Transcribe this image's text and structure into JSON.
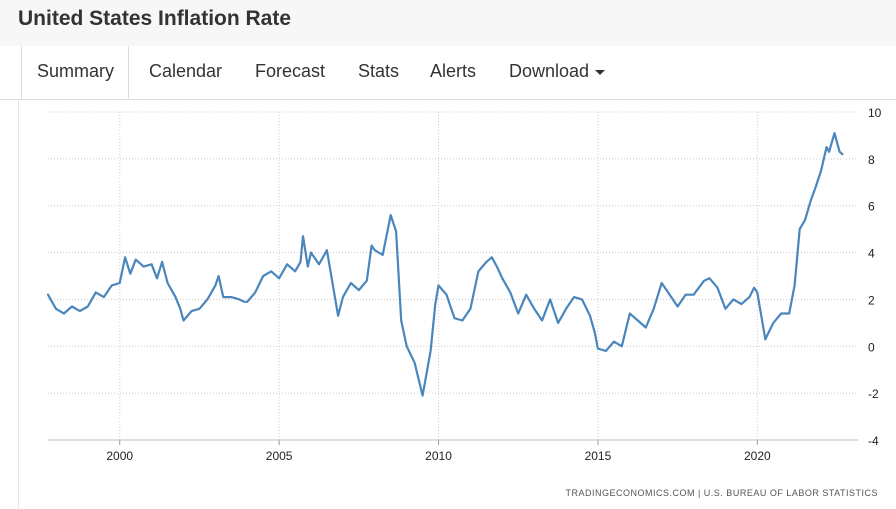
{
  "header": {
    "title": "United States Inflation Rate"
  },
  "tabs": {
    "summary": "Summary",
    "calendar": "Calendar",
    "forecast": "Forecast",
    "stats": "Stats",
    "alerts": "Alerts",
    "download": "Download"
  },
  "source": "TRADINGECONOMICS.COM | U.S. BUREAU OF LABOR STATISTICS",
  "colors": {
    "line": "#4a86bc",
    "grid": "#cccccc",
    "accent_text": "#333333"
  },
  "chart_data": {
    "type": "line",
    "title": "",
    "xlabel": "",
    "ylabel": "",
    "xlim": [
      1997.75,
      2022.75
    ],
    "ylim": [
      -4,
      10
    ],
    "x_ticks": [
      "2000",
      "2005",
      "2010",
      "2015",
      "2020"
    ],
    "y_ticks": [
      "10",
      "8",
      "6",
      "4",
      "2",
      "0",
      "-2",
      "-4"
    ],
    "grid": true,
    "series": [
      {
        "points": [
          [
            1997.75,
            2.2
          ],
          [
            1998.0,
            1.6
          ],
          [
            1998.25,
            1.4
          ],
          [
            1998.5,
            1.7
          ],
          [
            1998.75,
            1.5
          ],
          [
            1999.0,
            1.7
          ],
          [
            1999.25,
            2.3
          ],
          [
            1999.5,
            2.1
          ],
          [
            1999.75,
            2.6
          ],
          [
            2000.0,
            2.7
          ],
          [
            2000.17,
            3.8
          ],
          [
            2000.33,
            3.1
          ],
          [
            2000.5,
            3.7
          ],
          [
            2000.75,
            3.4
          ],
          [
            2001.0,
            3.5
          ],
          [
            2001.17,
            2.9
          ],
          [
            2001.33,
            3.6
          ],
          [
            2001.5,
            2.7
          ],
          [
            2001.75,
            2.1
          ],
          [
            2001.9,
            1.6
          ],
          [
            2002.0,
            1.1
          ],
          [
            2002.25,
            1.5
          ],
          [
            2002.5,
            1.6
          ],
          [
            2002.75,
            2.0
          ],
          [
            2003.0,
            2.6
          ],
          [
            2003.1,
            3.0
          ],
          [
            2003.25,
            2.1
          ],
          [
            2003.5,
            2.1
          ],
          [
            2003.75,
            2.0
          ],
          [
            2003.9,
            1.9
          ],
          [
            2004.0,
            1.9
          ],
          [
            2004.25,
            2.3
          ],
          [
            2004.5,
            3.0
          ],
          [
            2004.75,
            3.2
          ],
          [
            2005.0,
            2.9
          ],
          [
            2005.25,
            3.5
          ],
          [
            2005.5,
            3.2
          ],
          [
            2005.67,
            3.6
          ],
          [
            2005.75,
            4.7
          ],
          [
            2005.9,
            3.4
          ],
          [
            2006.0,
            4.0
          ],
          [
            2006.25,
            3.5
          ],
          [
            2006.5,
            4.1
          ],
          [
            2006.75,
            2.1
          ],
          [
            2006.85,
            1.3
          ],
          [
            2007.0,
            2.1
          ],
          [
            2007.25,
            2.7
          ],
          [
            2007.5,
            2.4
          ],
          [
            2007.75,
            2.8
          ],
          [
            2007.9,
            4.3
          ],
          [
            2008.0,
            4.1
          ],
          [
            2008.25,
            3.9
          ],
          [
            2008.5,
            5.6
          ],
          [
            2008.67,
            4.9
          ],
          [
            2008.83,
            1.1
          ],
          [
            2009.0,
            0.0
          ],
          [
            2009.25,
            -0.7
          ],
          [
            2009.5,
            -2.1
          ],
          [
            2009.75,
            -0.2
          ],
          [
            2009.9,
            1.8
          ],
          [
            2010.0,
            2.6
          ],
          [
            2010.25,
            2.2
          ],
          [
            2010.5,
            1.2
          ],
          [
            2010.75,
            1.1
          ],
          [
            2011.0,
            1.6
          ],
          [
            2011.25,
            3.2
          ],
          [
            2011.5,
            3.6
          ],
          [
            2011.67,
            3.8
          ],
          [
            2011.83,
            3.4
          ],
          [
            2012.0,
            2.9
          ],
          [
            2012.25,
            2.3
          ],
          [
            2012.5,
            1.4
          ],
          [
            2012.75,
            2.2
          ],
          [
            2013.0,
            1.6
          ],
          [
            2013.25,
            1.1
          ],
          [
            2013.5,
            2.0
          ],
          [
            2013.75,
            1.0
          ],
          [
            2014.0,
            1.6
          ],
          [
            2014.25,
            2.1
          ],
          [
            2014.5,
            2.0
          ],
          [
            2014.75,
            1.3
          ],
          [
            2014.9,
            0.6
          ],
          [
            2015.0,
            -0.1
          ],
          [
            2015.25,
            -0.2
          ],
          [
            2015.5,
            0.2
          ],
          [
            2015.75,
            0.0
          ],
          [
            2016.0,
            1.4
          ],
          [
            2016.25,
            1.1
          ],
          [
            2016.5,
            0.8
          ],
          [
            2016.75,
            1.6
          ],
          [
            2017.0,
            2.7
          ],
          [
            2017.25,
            2.2
          ],
          [
            2017.5,
            1.7
          ],
          [
            2017.75,
            2.2
          ],
          [
            2018.0,
            2.2
          ],
          [
            2018.33,
            2.8
          ],
          [
            2018.5,
            2.9
          ],
          [
            2018.75,
            2.5
          ],
          [
            2019.0,
            1.6
          ],
          [
            2019.25,
            2.0
          ],
          [
            2019.5,
            1.8
          ],
          [
            2019.75,
            2.1
          ],
          [
            2019.9,
            2.5
          ],
          [
            2020.0,
            2.3
          ],
          [
            2020.25,
            0.3
          ],
          [
            2020.5,
            1.0
          ],
          [
            2020.75,
            1.4
          ],
          [
            2021.0,
            1.4
          ],
          [
            2021.17,
            2.6
          ],
          [
            2021.33,
            5.0
          ],
          [
            2021.5,
            5.4
          ],
          [
            2021.67,
            6.2
          ],
          [
            2021.83,
            6.8
          ],
          [
            2022.0,
            7.5
          ],
          [
            2022.17,
            8.5
          ],
          [
            2022.25,
            8.3
          ],
          [
            2022.42,
            9.1
          ],
          [
            2022.58,
            8.3
          ],
          [
            2022.67,
            8.2
          ]
        ]
      }
    ]
  }
}
